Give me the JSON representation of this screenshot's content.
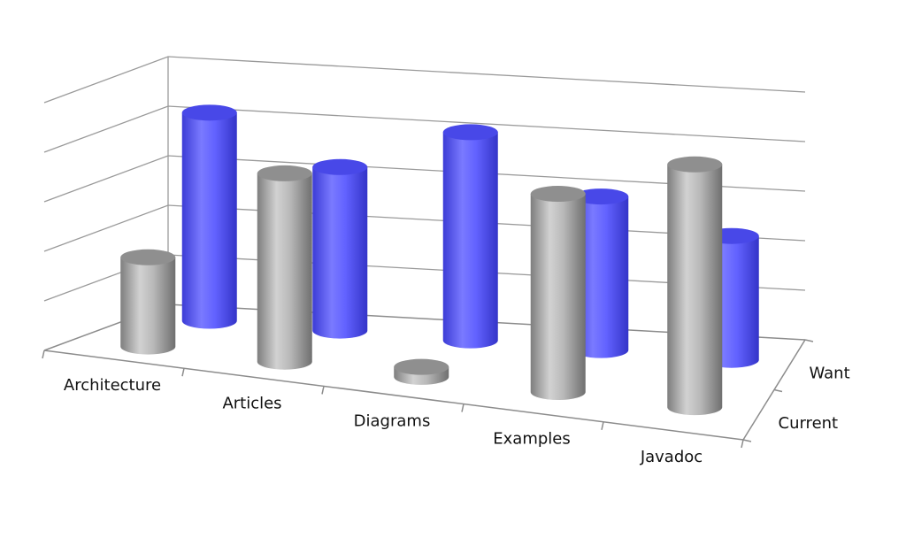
{
  "chart_data": {
    "type": "bar",
    "style": "3d-cylinder",
    "categories": [
      "Architecture",
      "Articles",
      "Diagrams",
      "Examples",
      "Javadoc"
    ],
    "series": [
      {
        "name": "Current",
        "values": [
          1.8,
          3.8,
          0.2,
          4.0,
          4.9
        ],
        "color": "#a6a6a6"
      },
      {
        "name": "Want",
        "values": [
          4.2,
          3.3,
          4.2,
          3.1,
          2.5
        ],
        "color": "#5a5aff"
      }
    ],
    "ylim": [
      0,
      5
    ],
    "grid": true,
    "legend": "none"
  }
}
